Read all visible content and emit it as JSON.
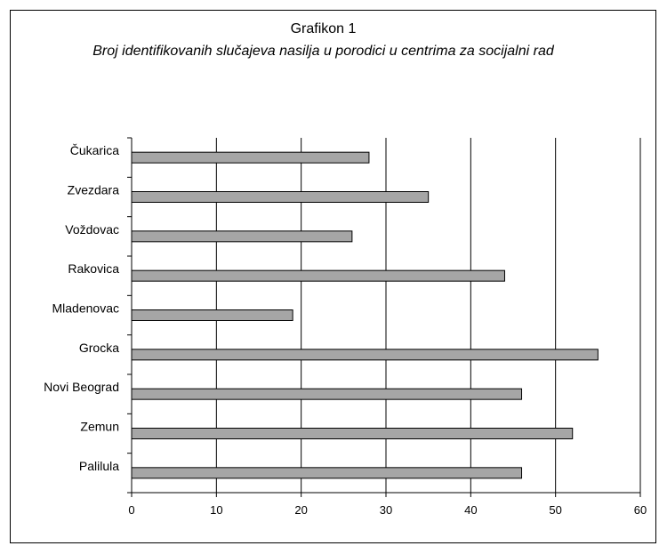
{
  "chart_data": {
    "type": "bar",
    "orientation": "horizontal",
    "title": "Grafikon 1",
    "subtitle": "Broj identifikovanih slučajeva nasilja u porodici u centrima za socijalni rad",
    "categories": [
      "Čukarica",
      "Zvezdara",
      "Voždovac",
      "Rakovica",
      "Mladenovac",
      "Grocka",
      "Novi Beograd",
      "Zemun",
      "Palilula"
    ],
    "values": [
      28,
      35,
      26,
      44,
      19,
      55,
      46,
      52,
      46
    ],
    "xlim": [
      0,
      60
    ],
    "xticks": [
      0,
      10,
      20,
      30,
      40,
      50,
      60
    ],
    "xlabel": "",
    "ylabel": "",
    "grid": "vertical",
    "legend": "none",
    "bar_color": "#a6a6a6"
  }
}
